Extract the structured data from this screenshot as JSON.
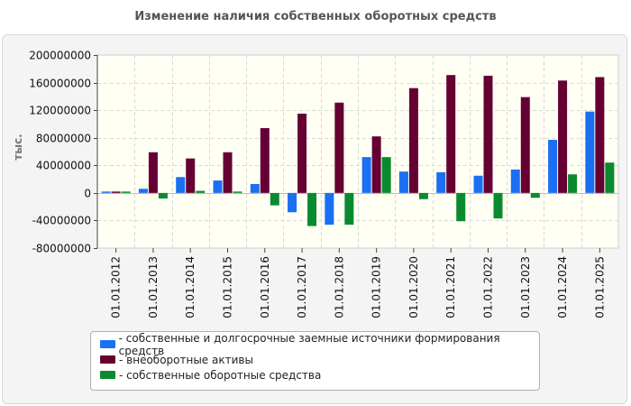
{
  "chart_data": {
    "type": "bar",
    "title": "Изменение наличия собственных оборотных средств",
    "ylabel": "тыс.",
    "xlabel": "",
    "ylim": [
      -80000000,
      200000000
    ],
    "yticks": [
      200000000,
      160000000,
      120000000,
      80000000,
      40000000,
      0,
      -40000000,
      -80000000
    ],
    "ytick_labels": [
      "200000000",
      "160000000",
      "120000000",
      "80000000",
      "40000000",
      "0",
      "-40000000",
      "-80000000"
    ],
    "categories": [
      "01.01.2012",
      "01.01.2013",
      "01.01.2014",
      "01.01.2015",
      "01.01.2016",
      "01.01.2017",
      "01.01.2018",
      "01.01.2019",
      "01.01.2020",
      "01.01.2021",
      "01.01.2022",
      "01.01.2023",
      "01.01.2024",
      "01.01.2025"
    ],
    "grid": true,
    "legend_position": "bottom",
    "series": [
      {
        "name": "- собственные и долгосрочные заемные источники формирования средств",
        "color": "#1a6ff2",
        "values": [
          2000000,
          6000000,
          23000000,
          18000000,
          13000000,
          -28000000,
          -46000000,
          52000000,
          31000000,
          30000000,
          25000000,
          34000000,
          77000000,
          118000000
        ]
      },
      {
        "name": "- внеоборотные активы",
        "color": "#660033",
        "values": [
          2000000,
          59000000,
          50000000,
          59000000,
          94000000,
          115000000,
          131000000,
          82000000,
          152000000,
          171000000,
          170000000,
          139000000,
          163000000,
          168000000
        ]
      },
      {
        "name": "- собственные оборотные средства",
        "color": "#0a8a2e",
        "values": [
          2000000,
          -8000000,
          3000000,
          2000000,
          -18000000,
          -48000000,
          -46000000,
          52000000,
          -9000000,
          -41000000,
          -37000000,
          -7000000,
          27000000,
          44000000
        ]
      }
    ]
  }
}
